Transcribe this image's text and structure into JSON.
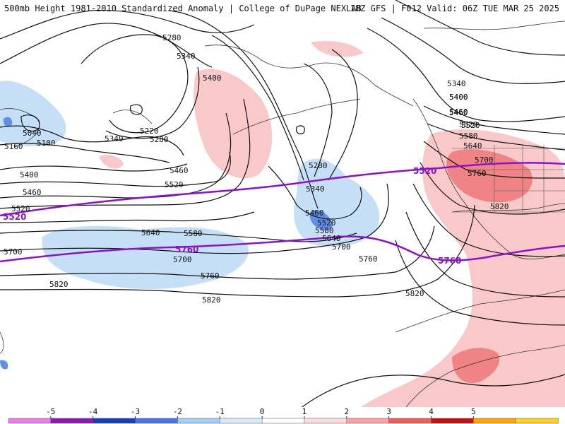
{
  "header": {
    "left_title": "500mb Height 1981-2010 Standardized Anomaly | College of DuPage NEXLAB",
    "right_title": "18Z GFS | F012 Valid: 06Z TUE MAR 25 2025"
  },
  "colorbar": {
    "ticks": [
      "-5",
      "-4",
      "-3",
      "-2",
      "-1",
      "0",
      "1",
      "2",
      "3",
      "4",
      "5"
    ],
    "colors": [
      "#e680e6",
      "#8c1ab3",
      "#1a3fb3",
      "#4d73e6",
      "#a8cdf2",
      "#d9ebfb",
      "#ffffff",
      "#fcdcdc",
      "#f5a3a3",
      "#ef5d5d",
      "#c70f0f",
      "#ffa500",
      "#ffd21a"
    ]
  },
  "anomaly_colors": {
    "neg1": "#c5dff7",
    "neg2": "#5f8fe6",
    "pos1": "#f9c9c9",
    "pos2": "#f08484"
  },
  "height_contours": {
    "black_labels": [
      "5280",
      "5340",
      "5400",
      "5220",
      "5280",
      "5340",
      "5040",
      "5100",
      "5160",
      "5400",
      "5460",
      "5520",
      "5460",
      "5520",
      "5400",
      "5460",
      "5520",
      "5280",
      "5340",
      "5460",
      "5520",
      "5580",
      "5640",
      "5700",
      "5580",
      "5640",
      "5700",
      "5700",
      "5760",
      "5820",
      "5820",
      "5820",
      "5760",
      "5340",
      "5400",
      "5460",
      "5520",
      "5580",
      "5640",
      "5700",
      "5760",
      "5820"
    ],
    "highlight_labels": [
      "5520",
      "5520",
      "5760",
      "5760"
    ],
    "highlight_color": "#8b12c9"
  }
}
